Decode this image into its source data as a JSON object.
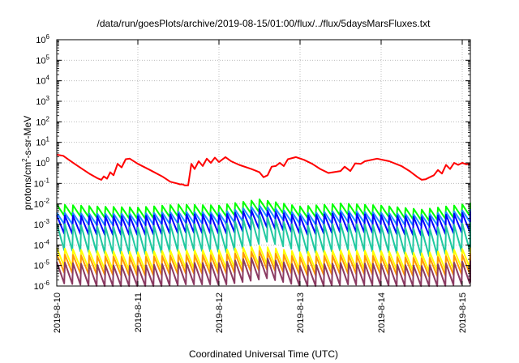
{
  "chart_data": {
    "type": "line",
    "title": "/data/run/goesPlots/archive/2019-08-15/01:00/flux/../flux/5daysMarsFluxes.txt",
    "xlabel": "Coordinated Universal Time (UTC)",
    "ylabel": "protons/cm²-s-sr-MeV",
    "ylabel_parts": {
      "prefix": "protons/cm",
      "sup": "2",
      "suffix": "-s-sr-MeV"
    },
    "x_unit": "days since 2019-8-10 00:00 UTC",
    "xlim": [
      0,
      5.1
    ],
    "x_ticks": [
      {
        "x": 0,
        "label": "2019-8-10"
      },
      {
        "x": 1,
        "label": "2019-8-11"
      },
      {
        "x": 2,
        "label": "2019-8-12"
      },
      {
        "x": 3,
        "label": "2019-8-13"
      },
      {
        "x": 4,
        "label": "2019-8-14"
      },
      {
        "x": 5,
        "label": "2019-8-15"
      }
    ],
    "y_scale": "log",
    "ylim_exp": [
      -6,
      6
    ],
    "y_ticks": [
      {
        "exp": -6,
        "label": "10",
        "sup": "-6"
      },
      {
        "exp": -5,
        "label": "10",
        "sup": "-5"
      },
      {
        "exp": -4,
        "label": "10",
        "sup": "-4"
      },
      {
        "exp": -3,
        "label": "10",
        "sup": "-3"
      },
      {
        "exp": -2,
        "label": "10",
        "sup": "-2"
      },
      {
        "exp": -1,
        "label": "10",
        "sup": "-1"
      },
      {
        "exp": 0,
        "label": "10",
        "sup": "0"
      },
      {
        "exp": 1,
        "label": "10",
        "sup": "1"
      },
      {
        "exp": 2,
        "label": "10",
        "sup": "2"
      },
      {
        "exp": 3,
        "label": "10",
        "sup": "3"
      },
      {
        "exp": 4,
        "label": "10",
        "sup": "4"
      },
      {
        "exp": 5,
        "label": "10",
        "sup": "5"
      },
      {
        "exp": 6,
        "label": "10",
        "sup": "6"
      }
    ],
    "grid": true,
    "series": [
      {
        "color": "#ff0000",
        "sawtooth": false,
        "points": [
          [
            0.0,
            2.5
          ],
          [
            0.08,
            2.2
          ],
          [
            0.15,
            1.4
          ],
          [
            0.22,
            0.9
          ],
          [
            0.3,
            0.55
          ],
          [
            0.4,
            0.3
          ],
          [
            0.5,
            0.18
          ],
          [
            0.55,
            0.15
          ],
          [
            0.58,
            0.22
          ],
          [
            0.62,
            0.17
          ],
          [
            0.66,
            0.35
          ],
          [
            0.7,
            0.25
          ],
          [
            0.75,
            0.9
          ],
          [
            0.8,
            0.6
          ],
          [
            0.85,
            1.5
          ],
          [
            0.9,
            1.6
          ],
          [
            1.0,
            0.9
          ],
          [
            1.15,
            0.45
          ],
          [
            1.3,
            0.22
          ],
          [
            1.4,
            0.12
          ],
          [
            1.48,
            0.1
          ],
          [
            1.52,
            0.09
          ],
          [
            1.55,
            0.09
          ],
          [
            1.58,
            0.08
          ],
          [
            1.62,
            0.08
          ],
          [
            1.66,
            0.9
          ],
          [
            1.7,
            0.5
          ],
          [
            1.75,
            1.2
          ],
          [
            1.8,
            0.7
          ],
          [
            1.85,
            1.6
          ],
          [
            1.9,
            1.0
          ],
          [
            1.95,
            1.8
          ],
          [
            2.0,
            1.1
          ],
          [
            2.08,
            1.9
          ],
          [
            2.15,
            1.2
          ],
          [
            2.25,
            0.8
          ],
          [
            2.4,
            0.5
          ],
          [
            2.5,
            0.35
          ],
          [
            2.55,
            0.2
          ],
          [
            2.6,
            0.25
          ],
          [
            2.65,
            0.65
          ],
          [
            2.7,
            0.7
          ],
          [
            2.75,
            1.0
          ],
          [
            2.8,
            0.7
          ],
          [
            2.85,
            1.5
          ],
          [
            2.95,
            1.9
          ],
          [
            3.05,
            1.4
          ],
          [
            3.15,
            0.9
          ],
          [
            3.25,
            0.5
          ],
          [
            3.35,
            0.32
          ],
          [
            3.5,
            0.4
          ],
          [
            3.55,
            0.65
          ],
          [
            3.62,
            0.4
          ],
          [
            3.68,
            0.95
          ],
          [
            3.75,
            0.9
          ],
          [
            3.8,
            1.2
          ],
          [
            3.95,
            1.6
          ],
          [
            4.1,
            1.2
          ],
          [
            4.25,
            0.7
          ],
          [
            4.35,
            0.4
          ],
          [
            4.45,
            0.2
          ],
          [
            4.5,
            0.15
          ],
          [
            4.55,
            0.16
          ],
          [
            4.6,
            0.2
          ],
          [
            4.65,
            0.25
          ],
          [
            4.7,
            0.45
          ],
          [
            4.75,
            0.3
          ],
          [
            4.8,
            0.8
          ],
          [
            4.85,
            0.5
          ],
          [
            4.9,
            1.0
          ],
          [
            4.95,
            0.8
          ],
          [
            5.0,
            1.0
          ],
          [
            5.05,
            0.85
          ],
          [
            5.1,
            0.9
          ]
        ]
      },
      {
        "color": "#00ff00",
        "sawtooth": true,
        "period": 0.1,
        "wave": [
          [
            0.0,
            -2.3
          ],
          [
            0.5,
            -2.4
          ],
          [
            1.0,
            -2.45
          ],
          [
            1.5,
            -2.3
          ],
          [
            2.0,
            -2.35
          ],
          [
            2.5,
            -2.05
          ],
          [
            3.0,
            -2.4
          ],
          [
            3.5,
            -2.25
          ],
          [
            4.0,
            -2.35
          ],
          [
            4.5,
            -2.55
          ],
          [
            5.1,
            -2.25
          ]
        ],
        "amp": 0.55
      },
      {
        "color": "#1e90ff",
        "sawtooth": true,
        "period": 0.1,
        "wave": [
          [
            0.0,
            -2.7
          ],
          [
            0.5,
            -2.75
          ],
          [
            1.0,
            -2.75
          ],
          [
            1.5,
            -2.65
          ],
          [
            2.0,
            -2.7
          ],
          [
            2.5,
            -2.35
          ],
          [
            3.0,
            -2.75
          ],
          [
            3.5,
            -2.6
          ],
          [
            4.0,
            -2.7
          ],
          [
            4.5,
            -2.8
          ],
          [
            5.1,
            -2.55
          ]
        ],
        "amp": 0.55
      },
      {
        "color": "#0000ff",
        "sawtooth": true,
        "period": 0.1,
        "wave": [
          [
            0.0,
            -3.0
          ],
          [
            0.5,
            -3.05
          ],
          [
            1.0,
            -3.05
          ],
          [
            1.5,
            -2.95
          ],
          [
            2.0,
            -3.0
          ],
          [
            2.5,
            -2.7
          ],
          [
            3.0,
            -3.05
          ],
          [
            3.5,
            -2.9
          ],
          [
            4.0,
            -3.0
          ],
          [
            4.5,
            -3.1
          ],
          [
            5.1,
            -2.85
          ]
        ],
        "amp": 0.9
      },
      {
        "color": "#20c8a0",
        "sawtooth": true,
        "period": 0.1,
        "wave": [
          [
            0.0,
            -3.6
          ],
          [
            0.5,
            -3.75
          ],
          [
            1.0,
            -3.8
          ],
          [
            1.5,
            -3.6
          ],
          [
            2.0,
            -3.7
          ],
          [
            2.5,
            -3.2
          ],
          [
            3.0,
            -3.75
          ],
          [
            3.5,
            -3.6
          ],
          [
            4.0,
            -3.7
          ],
          [
            4.5,
            -3.9
          ],
          [
            5.1,
            -3.55
          ]
        ],
        "amp": 1.3
      },
      {
        "color": "#ffff00",
        "sawtooth": true,
        "period": 0.1,
        "wave": [
          [
            0.0,
            -4.6
          ],
          [
            0.5,
            -4.75
          ],
          [
            1.0,
            -4.8
          ],
          [
            1.5,
            -4.7
          ],
          [
            2.0,
            -4.7
          ],
          [
            2.5,
            -4.5
          ],
          [
            3.0,
            -4.8
          ],
          [
            3.5,
            -4.7
          ],
          [
            4.0,
            -4.75
          ],
          [
            4.5,
            -4.85
          ],
          [
            5.1,
            -4.6
          ]
        ],
        "amp": 0.9
      },
      {
        "color": "#ff9900",
        "sawtooth": true,
        "period": 0.1,
        "wave": [
          [
            0.0,
            -4.9
          ],
          [
            0.5,
            -5.0
          ],
          [
            1.0,
            -5.05
          ],
          [
            1.5,
            -4.95
          ],
          [
            2.0,
            -4.95
          ],
          [
            2.5,
            -4.75
          ],
          [
            3.0,
            -5.05
          ],
          [
            3.5,
            -4.95
          ],
          [
            4.0,
            -5.0
          ],
          [
            4.5,
            -5.1
          ],
          [
            5.1,
            -4.9
          ]
        ],
        "amp": 0.9
      },
      {
        "color": "#8b3a62",
        "sawtooth": true,
        "period": 0.1,
        "wave": [
          [
            0.0,
            -5.35
          ],
          [
            0.5,
            -5.5
          ],
          [
            1.0,
            -5.55
          ],
          [
            1.5,
            -5.4
          ],
          [
            2.0,
            -5.4
          ],
          [
            2.5,
            -5.1
          ],
          [
            3.0,
            -5.55
          ],
          [
            3.5,
            -5.4
          ],
          [
            4.0,
            -5.45
          ],
          [
            4.5,
            -5.55
          ],
          [
            5.1,
            -5.3
          ]
        ],
        "amp": 1.05
      }
    ]
  }
}
